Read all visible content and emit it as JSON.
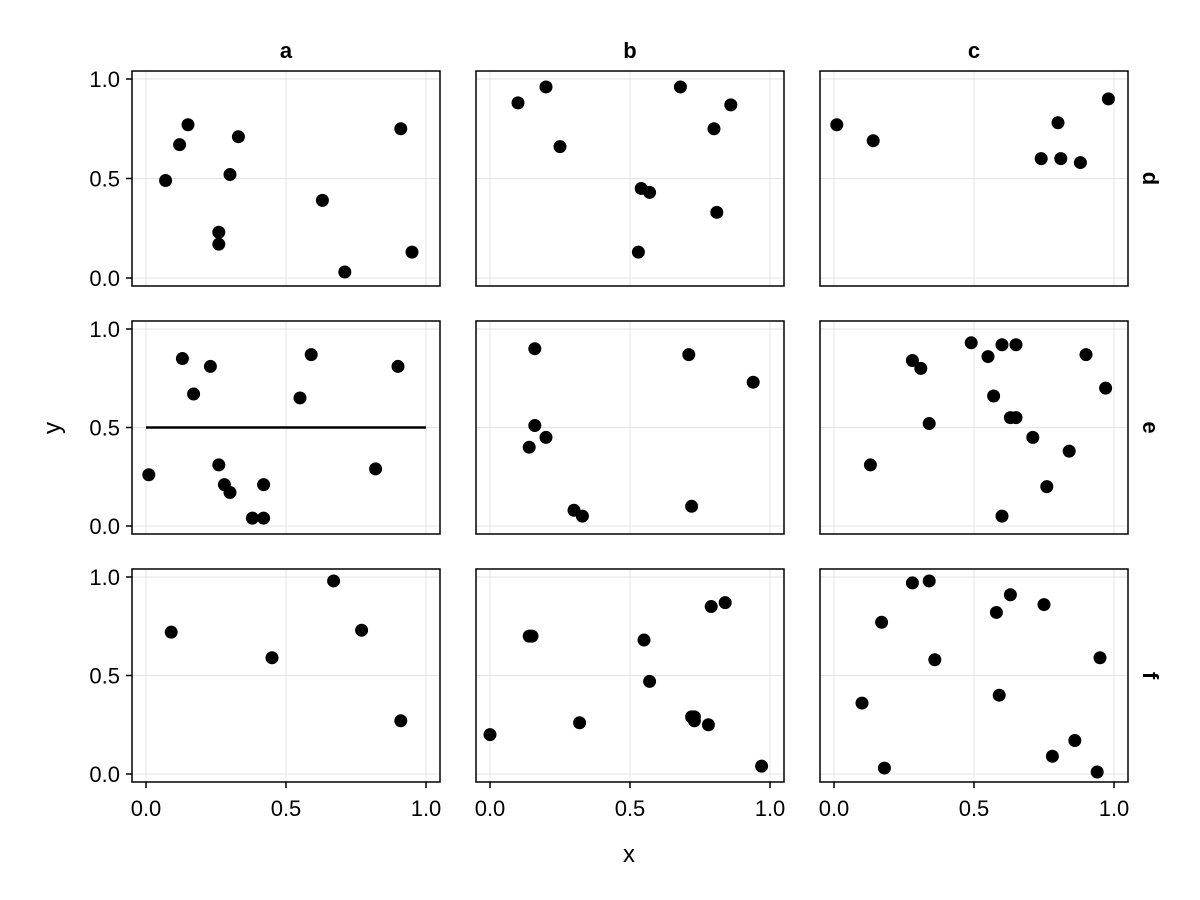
{
  "chart_data": {
    "type": "scatter",
    "layout": "facet-grid",
    "xlabel": "x",
    "ylabel": "y",
    "xlim": [
      0,
      1
    ],
    "ylim": [
      0,
      1
    ],
    "x_ticks": [
      "0.0",
      "0.5",
      "1.0"
    ],
    "y_ticks": [
      "0.0",
      "0.5",
      "1.0"
    ],
    "grid": true,
    "point_color": "#000000",
    "columns": [
      "a",
      "b",
      "c"
    ],
    "rows": [
      "d",
      "e",
      "f"
    ],
    "panels": [
      {
        "col": "a",
        "row": "d",
        "hline": null,
        "points": [
          [
            0.07,
            0.49
          ],
          [
            0.12,
            0.67
          ],
          [
            0.15,
            0.77
          ],
          [
            0.26,
            0.23
          ],
          [
            0.26,
            0.17
          ],
          [
            0.3,
            0.52
          ],
          [
            0.33,
            0.71
          ],
          [
            0.63,
            0.39
          ],
          [
            0.71,
            0.03
          ],
          [
            0.91,
            0.75
          ],
          [
            0.95,
            0.13
          ]
        ]
      },
      {
        "col": "b",
        "row": "d",
        "hline": null,
        "points": [
          [
            0.1,
            0.88
          ],
          [
            0.2,
            0.96
          ],
          [
            0.25,
            0.66
          ],
          [
            0.54,
            0.45
          ],
          [
            0.57,
            0.43
          ],
          [
            0.53,
            0.13
          ],
          [
            0.68,
            0.96
          ],
          [
            0.8,
            0.75
          ],
          [
            0.86,
            0.87
          ],
          [
            0.81,
            0.33
          ]
        ]
      },
      {
        "col": "c",
        "row": "d",
        "hline": null,
        "points": [
          [
            0.01,
            0.77
          ],
          [
            0.14,
            0.69
          ],
          [
            0.74,
            0.6
          ],
          [
            0.8,
            0.78
          ],
          [
            0.81,
            0.6
          ],
          [
            0.88,
            0.58
          ],
          [
            0.98,
            0.9
          ]
        ]
      },
      {
        "col": "a",
        "row": "e",
        "hline": 0.5,
        "points": [
          [
            0.01,
            0.26
          ],
          [
            0.13,
            0.85
          ],
          [
            0.17,
            0.67
          ],
          [
            0.23,
            0.81
          ],
          [
            0.26,
            0.31
          ],
          [
            0.28,
            0.21
          ],
          [
            0.3,
            0.17
          ],
          [
            0.38,
            0.04
          ],
          [
            0.42,
            0.04
          ],
          [
            0.42,
            0.21
          ],
          [
            0.55,
            0.65
          ],
          [
            0.59,
            0.87
          ],
          [
            0.82,
            0.29
          ],
          [
            0.9,
            0.81
          ]
        ]
      },
      {
        "col": "b",
        "row": "e",
        "hline": null,
        "points": [
          [
            0.14,
            0.4
          ],
          [
            0.16,
            0.51
          ],
          [
            0.16,
            0.9
          ],
          [
            0.2,
            0.45
          ],
          [
            0.3,
            0.08
          ],
          [
            0.33,
            0.05
          ],
          [
            0.71,
            0.87
          ],
          [
            0.72,
            0.1
          ],
          [
            0.94,
            0.73
          ]
        ]
      },
      {
        "col": "c",
        "row": "e",
        "hline": null,
        "points": [
          [
            0.13,
            0.31
          ],
          [
            0.28,
            0.84
          ],
          [
            0.31,
            0.8
          ],
          [
            0.34,
            0.52
          ],
          [
            0.49,
            0.93
          ],
          [
            0.55,
            0.86
          ],
          [
            0.57,
            0.66
          ],
          [
            0.6,
            0.92
          ],
          [
            0.6,
            0.05
          ],
          [
            0.63,
            0.55
          ],
          [
            0.65,
            0.92
          ],
          [
            0.65,
            0.55
          ],
          [
            0.71,
            0.45
          ],
          [
            0.76,
            0.2
          ],
          [
            0.84,
            0.38
          ],
          [
            0.9,
            0.87
          ],
          [
            0.97,
            0.7
          ]
        ]
      },
      {
        "col": "a",
        "row": "f",
        "hline": null,
        "points": [
          [
            0.09,
            0.72
          ],
          [
            0.45,
            0.59
          ],
          [
            0.67,
            0.98
          ],
          [
            0.77,
            0.73
          ],
          [
            0.91,
            0.27
          ]
        ]
      },
      {
        "col": "b",
        "row": "f",
        "hline": null,
        "points": [
          [
            0.0,
            0.2
          ],
          [
            0.14,
            0.7
          ],
          [
            0.15,
            0.7
          ],
          [
            0.32,
            0.26
          ],
          [
            0.55,
            0.68
          ],
          [
            0.57,
            0.47
          ],
          [
            0.72,
            0.29
          ],
          [
            0.73,
            0.27
          ],
          [
            0.73,
            0.29
          ],
          [
            0.78,
            0.25
          ],
          [
            0.79,
            0.85
          ],
          [
            0.84,
            0.87
          ],
          [
            0.97,
            0.04
          ]
        ]
      },
      {
        "col": "c",
        "row": "f",
        "hline": null,
        "points": [
          [
            0.1,
            0.36
          ],
          [
            0.17,
            0.77
          ],
          [
            0.18,
            0.03
          ],
          [
            0.28,
            0.97
          ],
          [
            0.34,
            0.98
          ],
          [
            0.36,
            0.58
          ],
          [
            0.58,
            0.82
          ],
          [
            0.59,
            0.4
          ],
          [
            0.63,
            0.91
          ],
          [
            0.75,
            0.86
          ],
          [
            0.78,
            0.09
          ],
          [
            0.86,
            0.17
          ],
          [
            0.94,
            0.01
          ],
          [
            0.95,
            0.59
          ]
        ]
      }
    ]
  }
}
